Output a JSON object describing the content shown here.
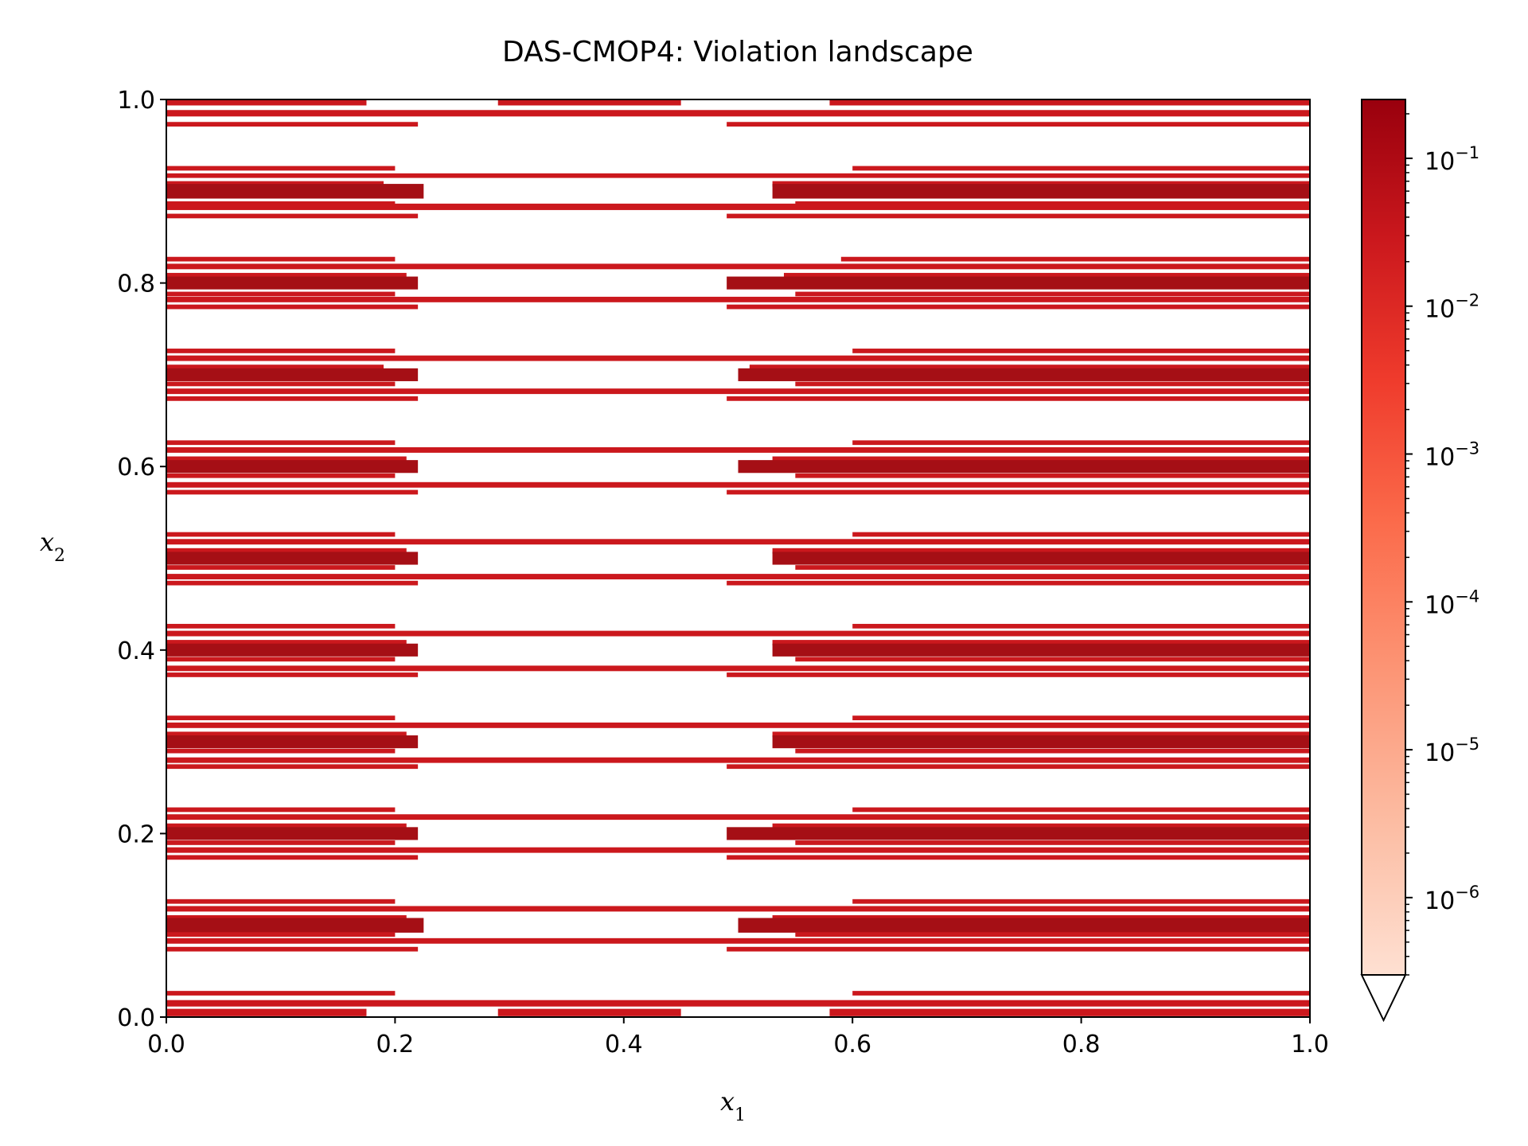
{
  "chart_data": {
    "type": "heatmap",
    "title": "DAS-CMOP4: Violation landscape",
    "xlabel": "x",
    "xlabel_sub": "1",
    "ylabel": "x",
    "ylabel_sub": "2",
    "xlim": [
      0.0,
      1.0
    ],
    "ylim": [
      0.0,
      1.0
    ],
    "x_ticks": [
      0.0,
      0.2,
      0.4,
      0.6,
      0.8,
      1.0
    ],
    "x_tick_labels": [
      "0.0",
      "0.2",
      "0.4",
      "0.6",
      "0.8",
      "1.0"
    ],
    "y_ticks": [
      0.0,
      0.2,
      0.4,
      0.6,
      0.8,
      1.0
    ],
    "y_tick_labels": [
      "0.0",
      "0.2",
      "0.4",
      "0.6",
      "0.8",
      "1.0"
    ],
    "colorbar": {
      "scale": "log",
      "cmap": "Reds",
      "extend": "min",
      "range": [
        3e-07,
        0.25
      ],
      "ticks": [
        1e-06,
        1e-05,
        0.0001,
        0.001,
        0.01,
        0.1
      ],
      "tick_bases": [
        "10",
        "10",
        "10",
        "10",
        "10",
        "10"
      ],
      "tick_exponents": [
        "−6",
        "−5",
        "−4",
        "−3",
        "−2",
        "−1"
      ]
    },
    "colors": {
      "dark": "#a50f15",
      "mid": "#cb181d",
      "light": "#fee0d2"
    },
    "bands": [
      {
        "y": 0.997,
        "h": 0.007,
        "segments": [
          [
            0.0,
            0.175
          ],
          [
            0.29,
            0.45
          ],
          [
            0.58,
            1.0
          ]
        ]
      },
      {
        "y": 0.985,
        "h": 0.007,
        "segments": [
          [
            0.0,
            1.0
          ]
        ]
      },
      {
        "y": 0.973,
        "h": 0.005,
        "segments": [
          [
            0.0,
            0.22
          ],
          [
            0.49,
            1.0
          ]
        ]
      },
      {
        "y": 0.925,
        "h": 0.005,
        "segments": [
          [
            0.0,
            0.2
          ],
          [
            0.6,
            1.0
          ]
        ]
      },
      {
        "y": 0.917,
        "h": 0.005,
        "segments": [
          [
            0.0,
            1.0
          ]
        ]
      },
      {
        "y": 0.908,
        "h": 0.006,
        "segments": [
          [
            0.0,
            0.19
          ],
          [
            0.53,
            1.0
          ]
        ]
      },
      {
        "y": 0.9,
        "h": 0.016,
        "segments": [
          [
            0.0,
            0.225
          ],
          [
            0.53,
            1.0
          ]
        ]
      },
      {
        "y": 0.886,
        "h": 0.006,
        "segments": [
          [
            0.0,
            0.2
          ],
          [
            0.55,
            1.0
          ]
        ]
      },
      {
        "y": 0.883,
        "h": 0.007,
        "segments": [
          [
            0.0,
            1.0
          ]
        ]
      },
      {
        "y": 0.873,
        "h": 0.005,
        "segments": [
          [
            0.0,
            0.22
          ],
          [
            0.49,
            1.0
          ]
        ]
      },
      {
        "y": 0.826,
        "h": 0.005,
        "segments": [
          [
            0.0,
            0.2
          ],
          [
            0.59,
            1.0
          ]
        ]
      },
      {
        "y": 0.818,
        "h": 0.006,
        "segments": [
          [
            0.0,
            1.0
          ]
        ]
      },
      {
        "y": 0.808,
        "h": 0.006,
        "segments": [
          [
            0.0,
            0.21
          ],
          [
            0.54,
            1.0
          ]
        ]
      },
      {
        "y": 0.8,
        "h": 0.014,
        "segments": [
          [
            0.0,
            0.22
          ],
          [
            0.49,
            1.0
          ]
        ]
      },
      {
        "y": 0.788,
        "h": 0.005,
        "segments": [
          [
            0.0,
            0.2
          ],
          [
            0.55,
            1.0
          ]
        ]
      },
      {
        "y": 0.782,
        "h": 0.006,
        "segments": [
          [
            0.0,
            1.0
          ]
        ]
      },
      {
        "y": 0.774,
        "h": 0.005,
        "segments": [
          [
            0.0,
            0.22
          ],
          [
            0.49,
            1.0
          ]
        ]
      },
      {
        "y": 0.726,
        "h": 0.005,
        "segments": [
          [
            0.0,
            0.2
          ],
          [
            0.6,
            1.0
          ]
        ]
      },
      {
        "y": 0.718,
        "h": 0.006,
        "segments": [
          [
            0.0,
            1.0
          ]
        ]
      },
      {
        "y": 0.708,
        "h": 0.006,
        "segments": [
          [
            0.0,
            0.19
          ],
          [
            0.51,
            1.0
          ]
        ]
      },
      {
        "y": 0.7,
        "h": 0.014,
        "segments": [
          [
            0.0,
            0.22
          ],
          [
            0.5,
            1.0
          ]
        ]
      },
      {
        "y": 0.69,
        "h": 0.005,
        "segments": [
          [
            0.0,
            0.2
          ],
          [
            0.55,
            1.0
          ]
        ]
      },
      {
        "y": 0.682,
        "h": 0.006,
        "segments": [
          [
            0.0,
            1.0
          ]
        ]
      },
      {
        "y": 0.674,
        "h": 0.005,
        "segments": [
          [
            0.0,
            0.22
          ],
          [
            0.49,
            1.0
          ]
        ]
      },
      {
        "y": 0.626,
        "h": 0.005,
        "segments": [
          [
            0.0,
            0.2
          ],
          [
            0.6,
            1.0
          ]
        ]
      },
      {
        "y": 0.618,
        "h": 0.006,
        "segments": [
          [
            0.0,
            1.0
          ]
        ]
      },
      {
        "y": 0.608,
        "h": 0.006,
        "segments": [
          [
            0.0,
            0.21
          ],
          [
            0.53,
            1.0
          ]
        ]
      },
      {
        "y": 0.6,
        "h": 0.014,
        "segments": [
          [
            0.0,
            0.22
          ],
          [
            0.5,
            1.0
          ]
        ]
      },
      {
        "y": 0.59,
        "h": 0.005,
        "segments": [
          [
            0.0,
            0.2
          ],
          [
            0.55,
            1.0
          ]
        ]
      },
      {
        "y": 0.58,
        "h": 0.006,
        "segments": [
          [
            0.0,
            1.0
          ]
        ]
      },
      {
        "y": 0.572,
        "h": 0.005,
        "segments": [
          [
            0.0,
            0.22
          ],
          [
            0.49,
            1.0
          ]
        ]
      },
      {
        "y": 0.526,
        "h": 0.005,
        "segments": [
          [
            0.0,
            0.2
          ],
          [
            0.6,
            1.0
          ]
        ]
      },
      {
        "y": 0.518,
        "h": 0.006,
        "segments": [
          [
            0.0,
            1.0
          ]
        ]
      },
      {
        "y": 0.508,
        "h": 0.006,
        "segments": [
          [
            0.0,
            0.21
          ],
          [
            0.53,
            1.0
          ]
        ]
      },
      {
        "y": 0.5,
        "h": 0.014,
        "segments": [
          [
            0.0,
            0.22
          ],
          [
            0.53,
            1.0
          ]
        ]
      },
      {
        "y": 0.49,
        "h": 0.005,
        "segments": [
          [
            0.0,
            0.2
          ],
          [
            0.55,
            1.0
          ]
        ]
      },
      {
        "y": 0.48,
        "h": 0.006,
        "segments": [
          [
            0.0,
            1.0
          ]
        ]
      },
      {
        "y": 0.473,
        "h": 0.005,
        "segments": [
          [
            0.0,
            0.22
          ],
          [
            0.49,
            1.0
          ]
        ]
      },
      {
        "y": 0.426,
        "h": 0.005,
        "segments": [
          [
            0.0,
            0.2
          ],
          [
            0.6,
            1.0
          ]
        ]
      },
      {
        "y": 0.418,
        "h": 0.006,
        "segments": [
          [
            0.0,
            1.0
          ]
        ]
      },
      {
        "y": 0.408,
        "h": 0.006,
        "segments": [
          [
            0.0,
            0.21
          ],
          [
            0.53,
            1.0
          ]
        ]
      },
      {
        "y": 0.4,
        "h": 0.014,
        "segments": [
          [
            0.0,
            0.22
          ],
          [
            0.53,
            1.0
          ]
        ]
      },
      {
        "y": 0.39,
        "h": 0.005,
        "segments": [
          [
            0.0,
            0.2
          ],
          [
            0.55,
            1.0
          ]
        ]
      },
      {
        "y": 0.38,
        "h": 0.006,
        "segments": [
          [
            0.0,
            1.0
          ]
        ]
      },
      {
        "y": 0.373,
        "h": 0.005,
        "segments": [
          [
            0.0,
            0.22
          ],
          [
            0.49,
            1.0
          ]
        ]
      },
      {
        "y": 0.326,
        "h": 0.005,
        "segments": [
          [
            0.0,
            0.2
          ],
          [
            0.6,
            1.0
          ]
        ]
      },
      {
        "y": 0.318,
        "h": 0.006,
        "segments": [
          [
            0.0,
            1.0
          ]
        ]
      },
      {
        "y": 0.308,
        "h": 0.006,
        "segments": [
          [
            0.0,
            0.21
          ],
          [
            0.53,
            1.0
          ]
        ]
      },
      {
        "y": 0.3,
        "h": 0.014,
        "segments": [
          [
            0.0,
            0.22
          ],
          [
            0.53,
            1.0
          ]
        ]
      },
      {
        "y": 0.29,
        "h": 0.005,
        "segments": [
          [
            0.0,
            0.2
          ],
          [
            0.55,
            1.0
          ]
        ]
      },
      {
        "y": 0.28,
        "h": 0.006,
        "segments": [
          [
            0.0,
            1.0
          ]
        ]
      },
      {
        "y": 0.273,
        "h": 0.005,
        "segments": [
          [
            0.0,
            0.22
          ],
          [
            0.49,
            1.0
          ]
        ]
      },
      {
        "y": 0.226,
        "h": 0.005,
        "segments": [
          [
            0.0,
            0.2
          ],
          [
            0.6,
            1.0
          ]
        ]
      },
      {
        "y": 0.218,
        "h": 0.006,
        "segments": [
          [
            0.0,
            1.0
          ]
        ]
      },
      {
        "y": 0.208,
        "h": 0.006,
        "segments": [
          [
            0.0,
            0.21
          ],
          [
            0.53,
            1.0
          ]
        ]
      },
      {
        "y": 0.2,
        "h": 0.014,
        "segments": [
          [
            0.0,
            0.22
          ],
          [
            0.49,
            1.0
          ]
        ]
      },
      {
        "y": 0.19,
        "h": 0.005,
        "segments": [
          [
            0.0,
            0.2
          ],
          [
            0.55,
            1.0
          ]
        ]
      },
      {
        "y": 0.182,
        "h": 0.006,
        "segments": [
          [
            0.0,
            1.0
          ]
        ]
      },
      {
        "y": 0.174,
        "h": 0.005,
        "segments": [
          [
            0.0,
            0.22
          ],
          [
            0.49,
            1.0
          ]
        ]
      },
      {
        "y": 0.126,
        "h": 0.005,
        "segments": [
          [
            0.0,
            0.2
          ],
          [
            0.6,
            1.0
          ]
        ]
      },
      {
        "y": 0.118,
        "h": 0.006,
        "segments": [
          [
            0.0,
            1.0
          ]
        ]
      },
      {
        "y": 0.108,
        "h": 0.006,
        "segments": [
          [
            0.0,
            0.21
          ],
          [
            0.53,
            1.0
          ]
        ]
      },
      {
        "y": 0.1,
        "h": 0.016,
        "segments": [
          [
            0.0,
            0.225
          ],
          [
            0.5,
            1.0
          ]
        ]
      },
      {
        "y": 0.09,
        "h": 0.005,
        "segments": [
          [
            0.0,
            0.2
          ],
          [
            0.55,
            1.0
          ]
        ]
      },
      {
        "y": 0.083,
        "h": 0.006,
        "segments": [
          [
            0.0,
            1.0
          ]
        ]
      },
      {
        "y": 0.074,
        "h": 0.005,
        "segments": [
          [
            0.0,
            0.22
          ],
          [
            0.49,
            1.0
          ]
        ]
      },
      {
        "y": 0.026,
        "h": 0.005,
        "segments": [
          [
            0.0,
            0.2
          ],
          [
            0.6,
            1.0
          ]
        ]
      },
      {
        "y": 0.015,
        "h": 0.007,
        "segments": [
          [
            0.0,
            1.0
          ]
        ]
      },
      {
        "y": 0.005,
        "h": 0.008,
        "segments": [
          [
            0.0,
            0.175
          ],
          [
            0.29,
            0.45
          ],
          [
            0.58,
            1.0
          ]
        ]
      }
    ]
  }
}
